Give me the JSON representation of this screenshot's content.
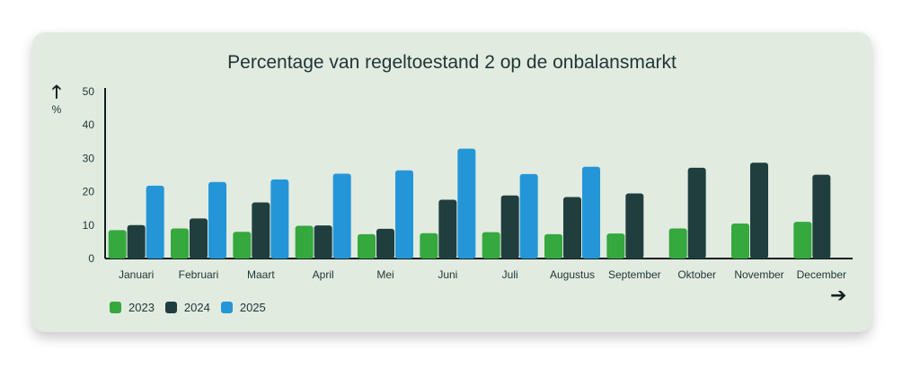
{
  "chart_data": {
    "type": "bar",
    "title": "Percentage van regeltoestand 2 op de onbalansmarkt",
    "ylabel": "%",
    "xlabel": "",
    "ylim": [
      0,
      50
    ],
    "yticks": [
      0,
      10,
      20,
      30,
      40,
      50
    ],
    "grid": false,
    "legend_position": "bottom-left",
    "categories": [
      "Januari",
      "Februari",
      "Maart",
      "April",
      "Mei",
      "Juni",
      "Juli",
      "Augustus",
      "September",
      "Oktober",
      "November",
      "December"
    ],
    "series": [
      {
        "name": "2023",
        "color": "#35a83e",
        "values": [
          8.5,
          9,
          8,
          9.8,
          7.3,
          7.6,
          7.9,
          7.3,
          7.5,
          9,
          10.5,
          11
        ]
      },
      {
        "name": "2024",
        "color": "#203e3e",
        "values": [
          10,
          12,
          16.8,
          9.9,
          8.9,
          17.6,
          18.9,
          18.4,
          19.5,
          27.2,
          28.7,
          25.1
        ]
      },
      {
        "name": "2025",
        "color": "#2496d8",
        "values": [
          21.8,
          22.9,
          23.7,
          25.4,
          26.4,
          32.9,
          25.3,
          27.5,
          null,
          null,
          null,
          null
        ]
      }
    ]
  },
  "icons": {
    "y_axis_arrow": "arrow-up-icon",
    "x_axis_arrow": "arrow-right-icon"
  },
  "glyphs": {
    "up_arrow": "🡑",
    "right_arrow": "➔"
  }
}
